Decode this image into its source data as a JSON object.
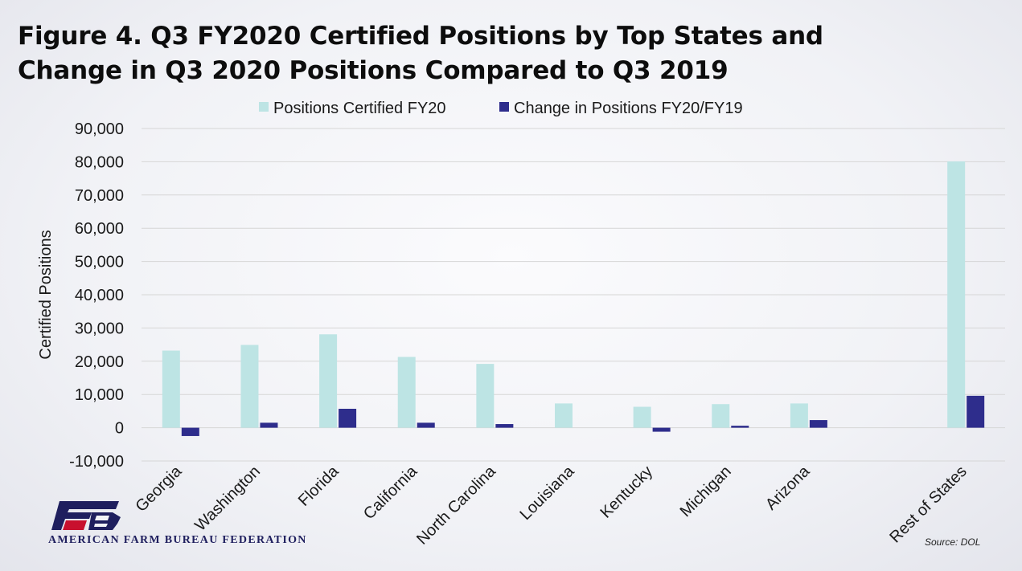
{
  "header": {
    "title_line1": "Figure 4. Q3 FY2020 Certified Positions by Top States and",
    "title_line2": "Change in Q3 2020 Positions Compared to Q3 2019"
  },
  "footer": {
    "source": "Source: DOL",
    "organization": "AMERICAN FARM BUREAU FEDERATION",
    "logo_text": "FB"
  },
  "colors": {
    "positions": "#bde4e4",
    "change": "#2e2d8c",
    "grid": "#d6d6d6",
    "logo_primary": "#1f1f5e",
    "logo_accent": "#c8102e"
  },
  "chart_data": {
    "type": "bar",
    "title": "Figure 4. Q3 FY2020 Certified Positions by Top States and Change in Q3 2020 Positions Compared to Q3 2019",
    "xlabel": "",
    "ylabel": "Certified Positions",
    "ylim": [
      -10000,
      90000
    ],
    "yticks": [
      -10000,
      0,
      10000,
      20000,
      30000,
      40000,
      50000,
      60000,
      70000,
      80000,
      90000
    ],
    "ytick_labels": [
      "-10,000",
      "0",
      "10,000",
      "20,000",
      "30,000",
      "40,000",
      "50,000",
      "60,000",
      "70,000",
      "80,000",
      "90,000"
    ],
    "grid": true,
    "legend_position": "top",
    "categories": [
      "Georgia",
      "Washington",
      "Florida",
      "California",
      "North Carolina",
      "Louisiana",
      "Kentucky",
      "Michigan",
      "Arizona",
      "",
      "Rest of States"
    ],
    "series": [
      {
        "name": "Positions Certified FY20",
        "values": [
          23200,
          24900,
          28100,
          21300,
          19200,
          7300,
          6300,
          7100,
          7300,
          null,
          80100
        ]
      },
      {
        "name": "Change in Positions FY20/FY19",
        "values": [
          -2500,
          1500,
          5700,
          1500,
          1100,
          0,
          -1200,
          600,
          2300,
          null,
          9600
        ]
      }
    ]
  }
}
